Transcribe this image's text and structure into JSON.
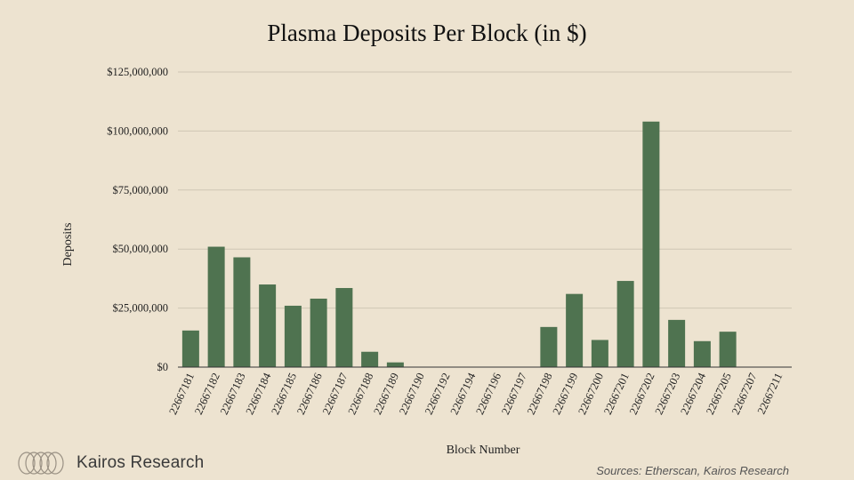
{
  "chart_data": {
    "type": "bar",
    "title": "Plasma Deposits Per Block (in $)",
    "xlabel": "Block Number",
    "ylabel": "Deposits",
    "ylim": [
      0,
      125000000
    ],
    "yticks": [
      0,
      25000000,
      50000000,
      75000000,
      100000000,
      125000000
    ],
    "ytick_labels": [
      "$0",
      "$25,000,000",
      "$50,000,000",
      "$75,000,000",
      "$100,000,000",
      "$125,000,000"
    ],
    "grid": true,
    "bar_color": "#4f7350",
    "categories": [
      "22667181",
      "22667182",
      "22667183",
      "22667184",
      "22667185",
      "22667186",
      "22667187",
      "22667188",
      "22667189",
      "22667190",
      "22667192",
      "22667194",
      "22667196",
      "22667197",
      "22667198",
      "22667199",
      "22667200",
      "22667201",
      "22667202",
      "22667203",
      "22667204",
      "22667205",
      "22667207",
      "22667211"
    ],
    "values": [
      15500000,
      51000000,
      46500000,
      35000000,
      26000000,
      29000000,
      33500000,
      6500000,
      2000000,
      0,
      0,
      0,
      0,
      0,
      17000000,
      31000000,
      11500000,
      36500000,
      104000000,
      20000000,
      11000000,
      15000000,
      0,
      0
    ]
  },
  "footer": {
    "brand": "Kairos Research",
    "sources": "Sources: Etherscan, Kairos Research"
  }
}
